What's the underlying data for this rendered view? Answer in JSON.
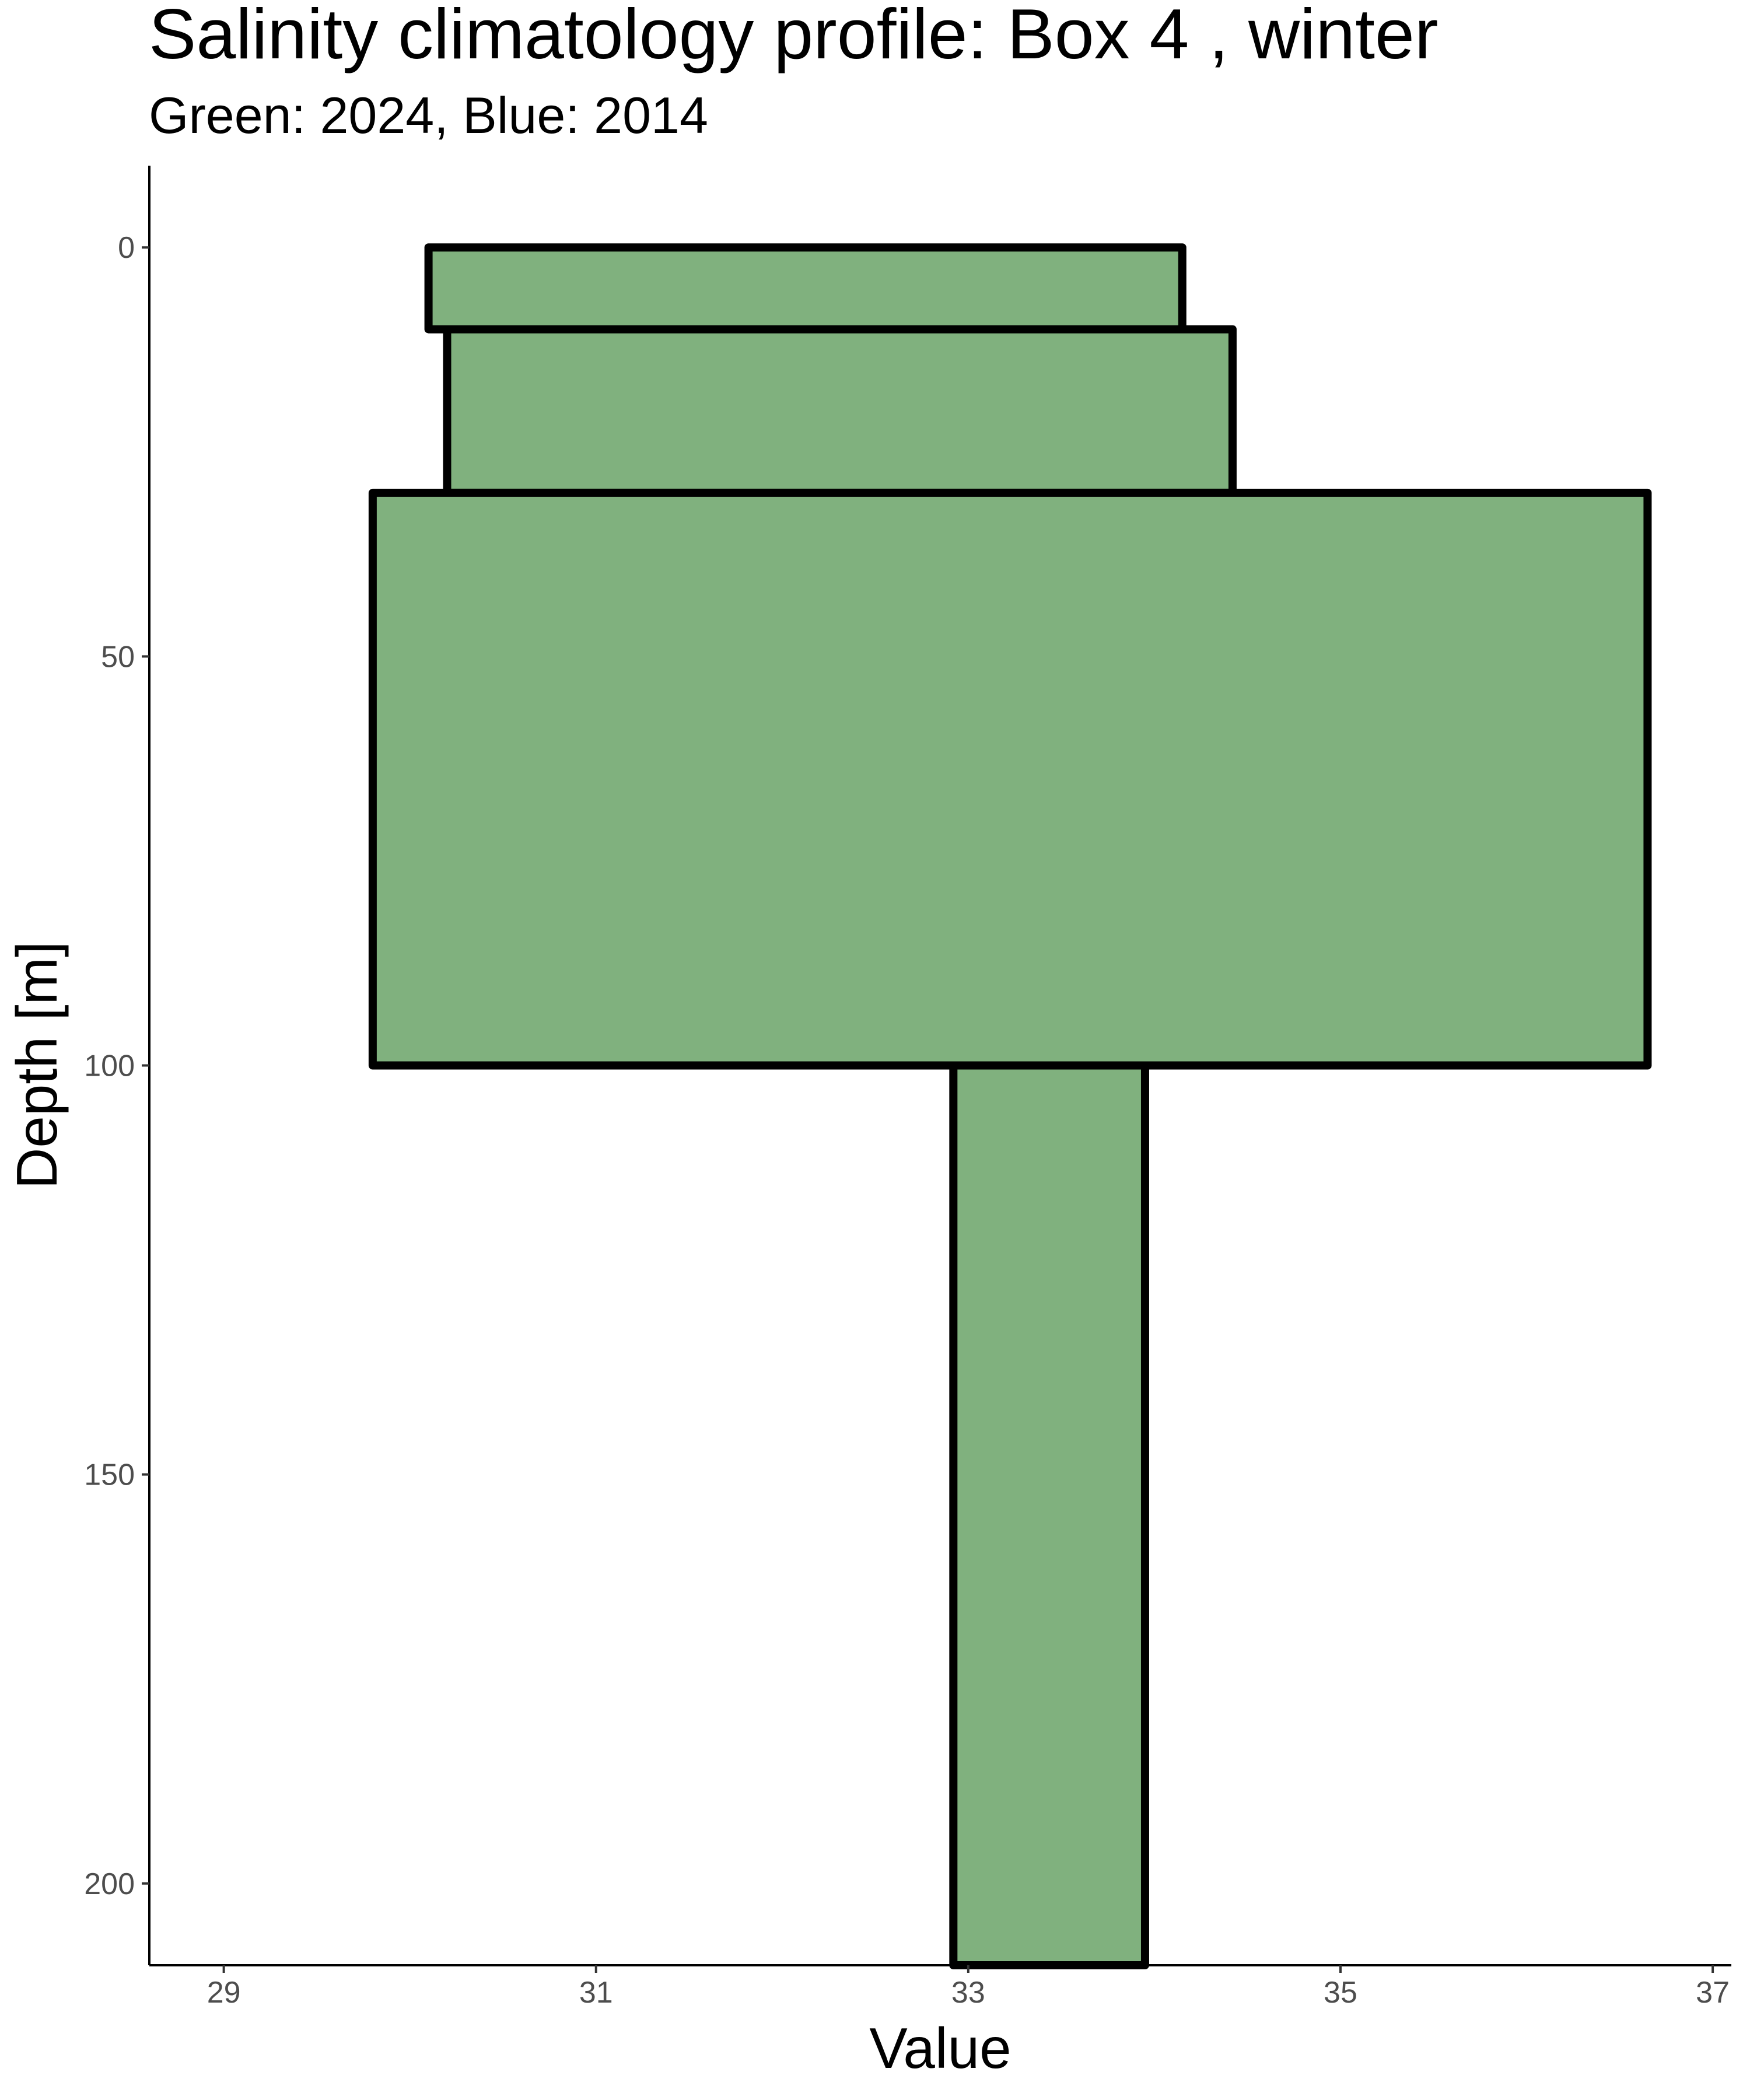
{
  "chart_data": {
    "type": "bar",
    "orientation": "horizontal-depth-bins",
    "title": "Salinity climatology profile: Box 4 , winter",
    "subtitle": "Green: 2024, Blue: 2014",
    "xlabel": "Value",
    "ylabel": "Depth [m]",
    "xlim": [
      28.6,
      37.1
    ],
    "ylim": [
      210,
      -10
    ],
    "y_reversed": true,
    "x_ticks": [
      29,
      31,
      33,
      35,
      37
    ],
    "y_ticks": [
      0,
      50,
      100,
      150,
      200
    ],
    "grid": false,
    "fill_color": "#80b17e",
    "edge_color": "#000000",
    "series": [
      {
        "bins": [
          {
            "depth_top": 0,
            "depth_bottom": 10,
            "x_min": 30.1,
            "x_max": 34.15
          },
          {
            "depth_top": 10,
            "depth_bottom": 30,
            "x_min": 30.2,
            "x_max": 34.42
          },
          {
            "depth_top": 30,
            "depth_bottom": 100,
            "x_min": 29.8,
            "x_max": 36.65
          },
          {
            "depth_top": 100,
            "depth_bottom": 210,
            "x_min": 32.92,
            "x_max": 33.95
          }
        ]
      }
    ]
  }
}
